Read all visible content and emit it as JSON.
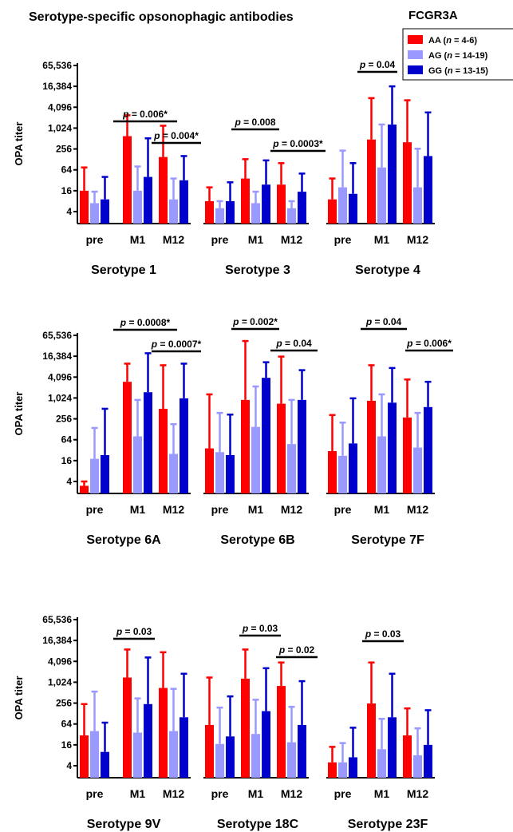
{
  "figure_title": "Serotype-specific opsonophagic antibodies",
  "legend": {
    "title": "FCGR3A",
    "entries": [
      {
        "label": "AA (n = 4-6)",
        "color": "#ff0000"
      },
      {
        "label": "AG (n = 14-19)",
        "color": "#9999ff"
      },
      {
        "label": "GG (n = 13-15)",
        "color": "#0000cc"
      }
    ]
  },
  "y_axis": {
    "label": "OPA titer",
    "scale": "log2",
    "ticks": [
      4,
      16,
      64,
      256,
      1024,
      4096,
      16384,
      65536
    ],
    "tick_labels": [
      "4",
      "16",
      "64",
      "256",
      "1,024",
      "4,096",
      "16,384",
      "65,536"
    ]
  },
  "chart_data": [
    {
      "type": "bar",
      "title": "Serotype 1",
      "categories": [
        "pre",
        "M1",
        "M12"
      ],
      "ylabel": "OPA titer",
      "ylim": [
        2,
        65536
      ],
      "log_scale": true,
      "series": [
        {
          "name": "AA (n = 4-6)",
          "values": [
            16,
            600,
            150
          ],
          "upper": [
            75,
            2400,
            1200
          ]
        },
        {
          "name": "AG (n = 14-19)",
          "values": [
            7,
            16,
            9
          ],
          "upper": [
            15,
            80,
            36
          ]
        },
        {
          "name": "GG (n = 13-15)",
          "values": [
            9,
            40,
            32
          ],
          "upper": [
            40,
            520,
            160
          ]
        }
      ],
      "annotations": [
        "p = 0.006*",
        "p = 0.004*"
      ]
    },
    {
      "type": "bar",
      "title": "Serotype 3",
      "categories": [
        "pre",
        "M1",
        "M12"
      ],
      "ylabel": "OPA titer",
      "ylim": [
        2,
        65536
      ],
      "log_scale": true,
      "series": [
        {
          "name": "AA (n = 4-6)",
          "values": [
            8,
            36,
            24
          ],
          "upper": [
            20,
            130,
            100
          ]
        },
        {
          "name": "AG (n = 14-19)",
          "values": [
            5,
            7,
            5
          ],
          "upper": [
            8,
            15,
            8
          ]
        },
        {
          "name": "GG (n = 13-15)",
          "values": [
            8,
            24,
            15
          ],
          "upper": [
            28,
            120,
            50
          ]
        }
      ],
      "annotations": [
        "p = 0.008",
        "p = 0.0003*"
      ]
    },
    {
      "type": "bar",
      "title": "Serotype 4",
      "categories": [
        "pre",
        "M1",
        "M12"
      ],
      "ylabel": "OPA titer",
      "ylim": [
        2,
        65536
      ],
      "log_scale": true,
      "series": [
        {
          "name": "AA (n = 4-6)",
          "values": [
            9,
            480,
            400
          ],
          "upper": [
            36,
            7500,
            6500
          ]
        },
        {
          "name": "AG (n = 14-19)",
          "values": [
            20,
            75,
            20
          ],
          "upper": [
            230,
            1300,
            260
          ]
        },
        {
          "name": "GG (n = 13-15)",
          "values": [
            13,
            1300,
            160
          ],
          "upper": [
            100,
            16384,
            2900
          ]
        }
      ],
      "annotations": [
        "p = 0.04"
      ]
    },
    {
      "type": "bar",
      "title": "Serotype 6A",
      "categories": [
        "pre",
        "M1",
        "M12"
      ],
      "ylabel": "OPA titer",
      "ylim": [
        2,
        65536
      ],
      "log_scale": true,
      "series": [
        {
          "name": "AA (n = 4-6)",
          "values": [
            3,
            3000,
            500
          ],
          "upper": [
            4,
            10000,
            9000
          ]
        },
        {
          "name": "AG (n = 14-19)",
          "values": [
            18,
            80,
            25
          ],
          "upper": [
            140,
            900,
            180
          ]
        },
        {
          "name": "GG (n = 13-15)",
          "values": [
            23,
            1500,
            1000
          ],
          "upper": [
            500,
            20000,
            10000
          ]
        }
      ],
      "annotations": [
        "p = 0.0008*",
        "p = 0.0007*"
      ]
    },
    {
      "type": "bar",
      "title": "Serotype 6B",
      "categories": [
        "pre",
        "M1",
        "M12"
      ],
      "ylabel": "OPA titer",
      "ylim": [
        2,
        65536
      ],
      "log_scale": true,
      "series": [
        {
          "name": "AA (n = 4-6)",
          "values": [
            36,
            900,
            700
          ],
          "upper": [
            1300,
            45000,
            16000
          ]
        },
        {
          "name": "AG (n = 14-19)",
          "values": [
            28,
            150,
            48
          ],
          "upper": [
            380,
            2200,
            900
          ]
        },
        {
          "name": "GG (n = 13-15)",
          "values": [
            23,
            3900,
            900
          ],
          "upper": [
            340,
            11000,
            6500
          ]
        }
      ],
      "annotations": [
        "p = 0.002*",
        "p = 0.04"
      ]
    },
    {
      "type": "bar",
      "title": "Serotype 7F",
      "categories": [
        "pre",
        "M1",
        "M12"
      ],
      "ylabel": "OPA titer",
      "ylim": [
        2,
        65536
      ],
      "log_scale": true,
      "series": [
        {
          "name": "AA (n = 4-6)",
          "values": [
            30,
            850,
            280
          ],
          "upper": [
            330,
            9000,
            3500
          ]
        },
        {
          "name": "AG (n = 14-19)",
          "values": [
            22,
            80,
            38
          ],
          "upper": [
            200,
            1300,
            380
          ]
        },
        {
          "name": "GG (n = 13-15)",
          "values": [
            50,
            750,
            560
          ],
          "upper": [
            1000,
            7500,
            3000
          ]
        }
      ],
      "annotations": [
        "p = 0.04",
        "p = 0.006*"
      ]
    },
    {
      "type": "bar",
      "title": "Serotype 9V",
      "categories": [
        "pre",
        "M1",
        "M12"
      ],
      "ylabel": "OPA titer",
      "ylim": [
        2,
        65536
      ],
      "log_scale": true,
      "series": [
        {
          "name": "AA (n = 4-6)",
          "values": [
            30,
            1400,
            700
          ],
          "upper": [
            240,
            9000,
            7500
          ]
        },
        {
          "name": "AG (n = 14-19)",
          "values": [
            40,
            36,
            40
          ],
          "upper": [
            550,
            350,
            660
          ]
        },
        {
          "name": "GG (n = 13-15)",
          "values": [
            10,
            240,
            100
          ],
          "upper": [
            70,
            5300,
            1800
          ]
        }
      ],
      "annotations": [
        "p = 0.03"
      ]
    },
    {
      "type": "bar",
      "title": "Serotype 18C",
      "categories": [
        "pre",
        "M1",
        "M12"
      ],
      "ylabel": "OPA titer",
      "ylim": [
        2,
        65536
      ],
      "log_scale": true,
      "series": [
        {
          "name": "AA (n = 4-6)",
          "values": [
            60,
            1300,
            800
          ],
          "upper": [
            1400,
            9000,
            3800
          ]
        },
        {
          "name": "AG (n = 14-19)",
          "values": [
            17,
            33,
            19
          ],
          "upper": [
            190,
            320,
            200
          ]
        },
        {
          "name": "GG (n = 13-15)",
          "values": [
            28,
            150,
            60
          ],
          "upper": [
            400,
            2600,
            1100
          ]
        }
      ],
      "annotations": [
        "p = 0.03",
        "p = 0.02"
      ]
    },
    {
      "type": "bar",
      "title": "Serotype 23F",
      "categories": [
        "pre",
        "M1",
        "M12"
      ],
      "ylabel": "OPA titer",
      "ylim": [
        2,
        65536
      ],
      "log_scale": true,
      "series": [
        {
          "name": "AA (n = 4-6)",
          "values": [
            5,
            250,
            30
          ],
          "upper": [
            14,
            3800,
            180
          ]
        },
        {
          "name": "AG (n = 14-19)",
          "values": [
            5,
            12,
            8
          ],
          "upper": [
            18,
            90,
            48
          ]
        },
        {
          "name": "GG (n = 13-15)",
          "values": [
            7,
            100,
            16
          ],
          "upper": [
            50,
            1800,
            160
          ]
        }
      ],
      "annotations": [
        "p = 0.03"
      ]
    }
  ]
}
